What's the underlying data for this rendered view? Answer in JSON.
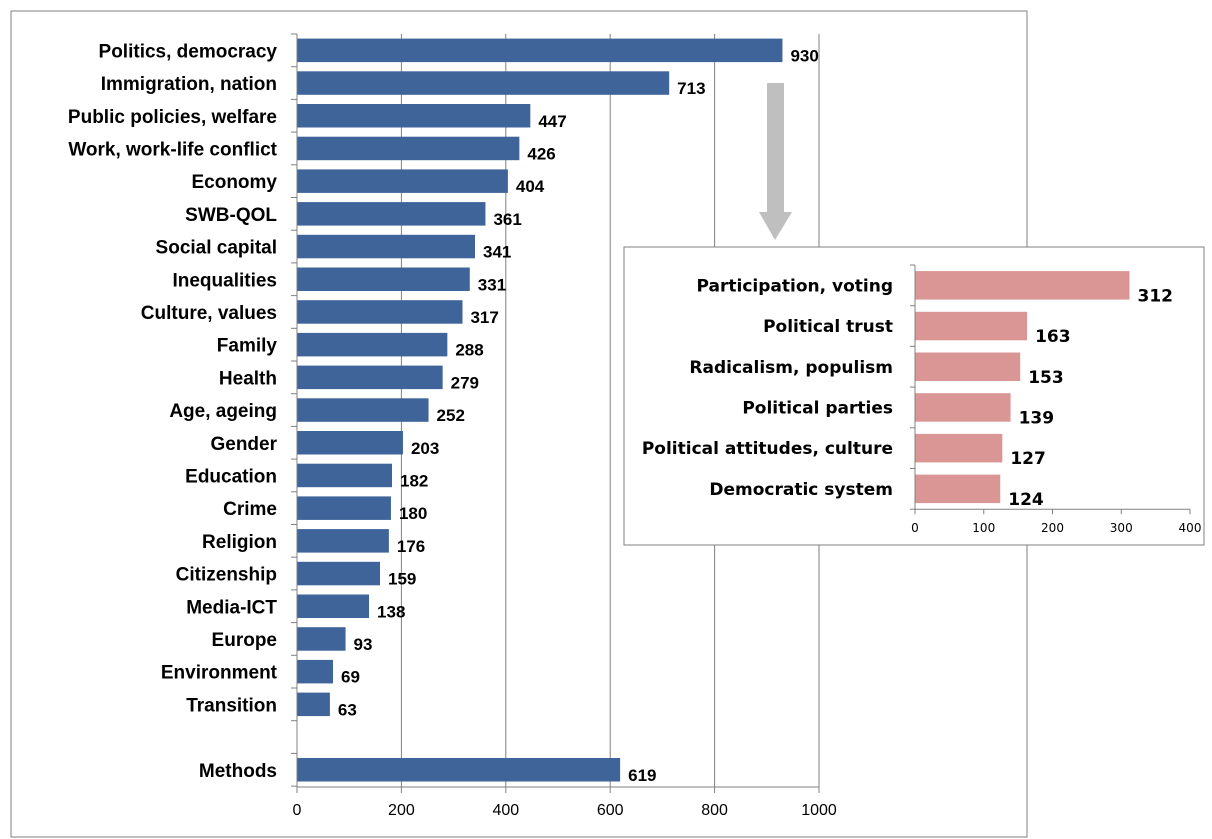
{
  "chart_data": [
    {
      "type": "bar",
      "orientation": "horizontal",
      "categories": [
        "Politics, democracy",
        "Immigration, nation",
        "Public policies, welfare",
        "Work, work-life conflict",
        "Economy",
        "SWB-QOL",
        "Social capital",
        "Inequalities",
        "Culture, values",
        "Family",
        "Health",
        "Age, ageing",
        "Gender",
        "Education",
        "Crime",
        "Religion",
        "Citizenship",
        "Media-ICT",
        "Europe",
        "Environment",
        "Transition",
        "Methods"
      ],
      "values": [
        930,
        713,
        447,
        426,
        404,
        361,
        341,
        331,
        317,
        288,
        279,
        252,
        203,
        182,
        180,
        176,
        159,
        138,
        93,
        69,
        63,
        619
      ],
      "xlim": [
        0,
        1000
      ],
      "xticks": [
        "0",
        "200",
        "400",
        "600",
        "800",
        "1000"
      ],
      "grid": true,
      "bar_color": "#3E6499"
    },
    {
      "type": "bar",
      "orientation": "horizontal",
      "categories": [
        "Participation, voting",
        "Political trust",
        "Radicalism, populism",
        "Political parties",
        "Political attitudes, culture",
        "Democratic system"
      ],
      "values": [
        312,
        163,
        153,
        139,
        127,
        124
      ],
      "xlim": [
        0,
        400
      ],
      "xticks": [
        "0",
        "100",
        "200",
        "300",
        "400"
      ],
      "grid": false,
      "bar_color": "#DA9694"
    }
  ],
  "colors": {
    "arrow": "#BFBFBF",
    "grid": "#808080",
    "border": "#808080"
  }
}
